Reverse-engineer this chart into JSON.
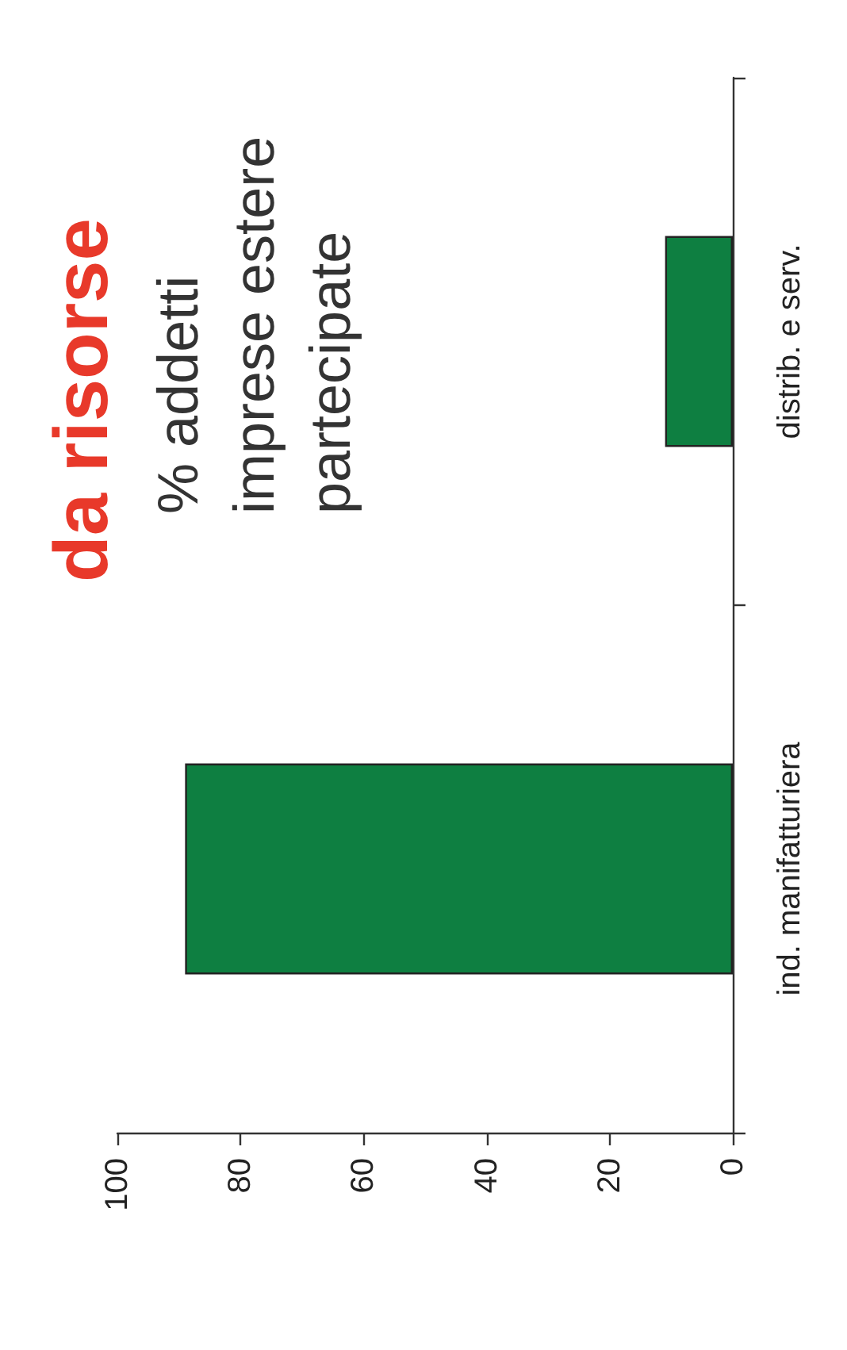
{
  "chart_data": {
    "type": "bar",
    "orientation": "horizontal",
    "title": "da risorse",
    "subtitle": "% addetti\nimprese estere\npartecipate",
    "categories": [
      "distrib. e serv.",
      "ind. manifatturiera"
    ],
    "values": [
      11,
      89
    ],
    "color": "#0e7f41",
    "xlim": [
      100,
      0
    ],
    "xticks": [
      100,
      80,
      60,
      40,
      20,
      0
    ]
  }
}
